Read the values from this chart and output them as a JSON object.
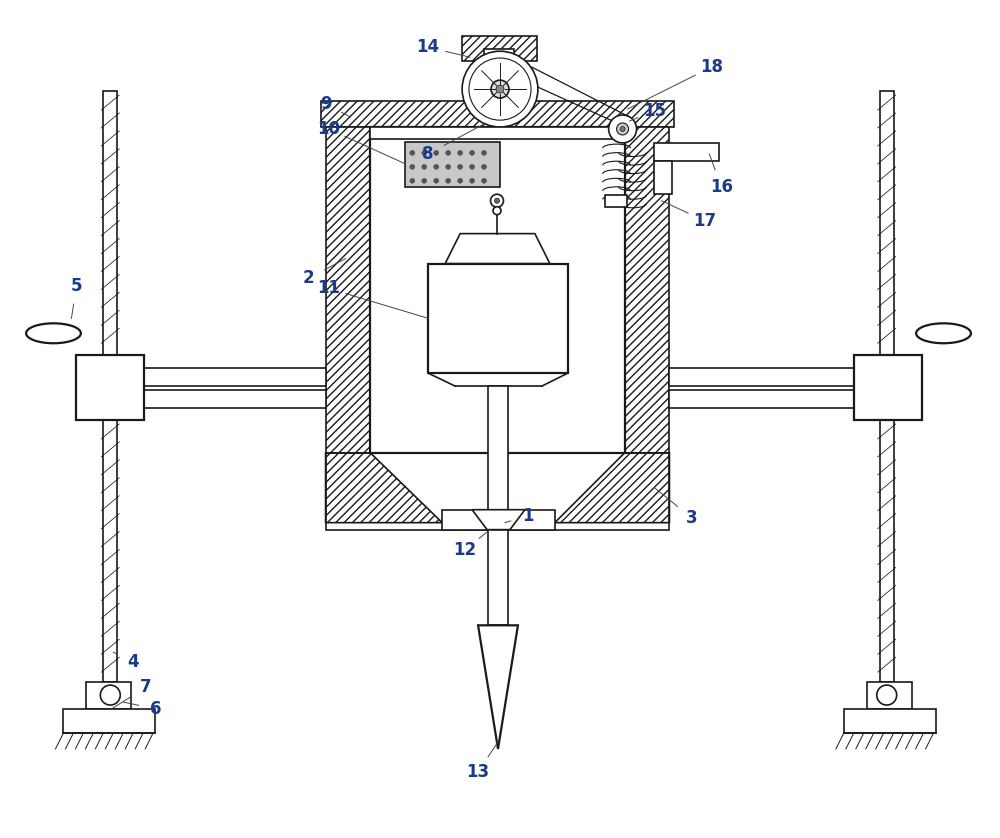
{
  "bg_color": "#ffffff",
  "line_color": "#1a1a1a",
  "label_color": "#1a3a8a",
  "fig_width": 10.0,
  "fig_height": 8.38
}
